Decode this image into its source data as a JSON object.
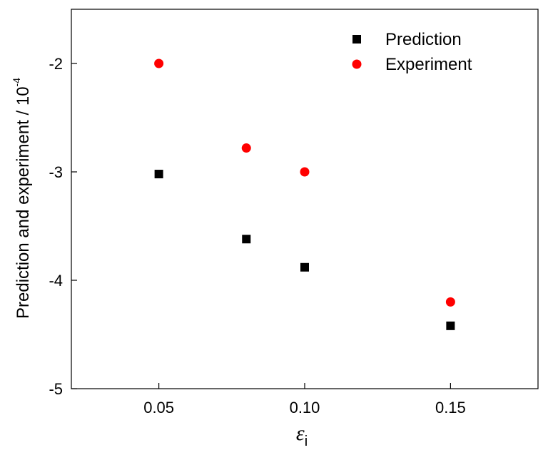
{
  "chart_data": {
    "type": "scatter",
    "title": "",
    "xlabel": {
      "symbol": "ε",
      "subscript": "i"
    },
    "ylabel": {
      "text": "Prediction and experiment / 10",
      "exponent": "-4"
    },
    "xlim": [
      0.02,
      0.18
    ],
    "ylim": [
      -5,
      -1.5
    ],
    "x_ticks": [
      0.05,
      0.1,
      0.15
    ],
    "x_tick_labels": [
      "0.05",
      "0.10",
      "0.15"
    ],
    "y_ticks": [
      -5,
      -4,
      -3,
      -2
    ],
    "y_tick_labels": [
      "-5",
      "-4",
      "-3",
      "-2"
    ],
    "grid": false,
    "legend_position": "top-right",
    "series": [
      {
        "name": "Prediction",
        "marker": "square",
        "color": "#000000",
        "x": [
          0.05,
          0.08,
          0.1,
          0.15
        ],
        "y": [
          -3.02,
          -3.62,
          -3.88,
          -4.42
        ]
      },
      {
        "name": "Experiment",
        "marker": "circle",
        "color": "#ff0000",
        "x": [
          0.05,
          0.08,
          0.1,
          0.15
        ],
        "y": [
          -2.0,
          -2.78,
          -3.0,
          -4.2
        ]
      }
    ]
  }
}
